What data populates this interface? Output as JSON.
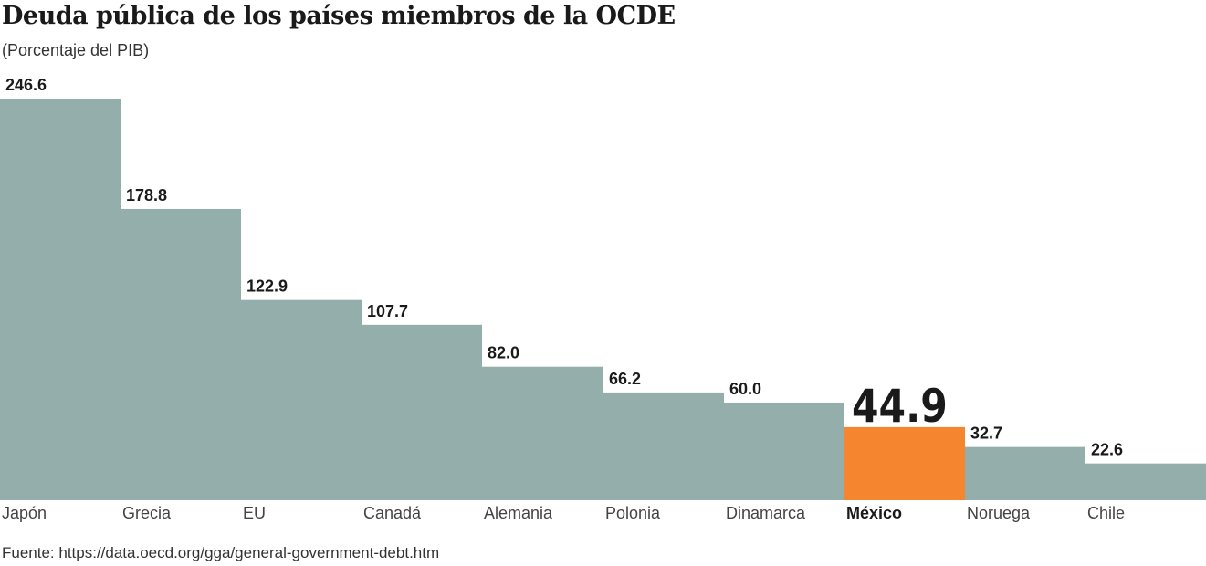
{
  "chart_data": {
    "type": "bar",
    "title": "Deuda pública de los países miembros de la OCDE",
    "subtitle": "(Porcentaje del PIB)",
    "source": "Fuente: https://data.oecd.org/gga/general-government-debt.htm",
    "categories": [
      "Japón",
      "Grecia",
      "EU",
      "Canadá",
      "Alemania",
      "Polonia",
      "Dinamarca",
      "México",
      "Noruega",
      "Chile"
    ],
    "values": [
      246.6,
      178.8,
      122.9,
      107.7,
      82.0,
      66.2,
      60.0,
      44.9,
      32.7,
      22.6
    ],
    "labels": [
      "246.6",
      "178.8",
      "122.9",
      "107.7",
      "82.0",
      "66.2",
      "60.0",
      "44.9",
      "32.7",
      "22.6"
    ],
    "highlight": "México",
    "colors": {
      "bar": "#94aeac",
      "highlight": "#f5852f",
      "text": "#1a1a1a"
    },
    "grid": false,
    "legend": "none"
  }
}
